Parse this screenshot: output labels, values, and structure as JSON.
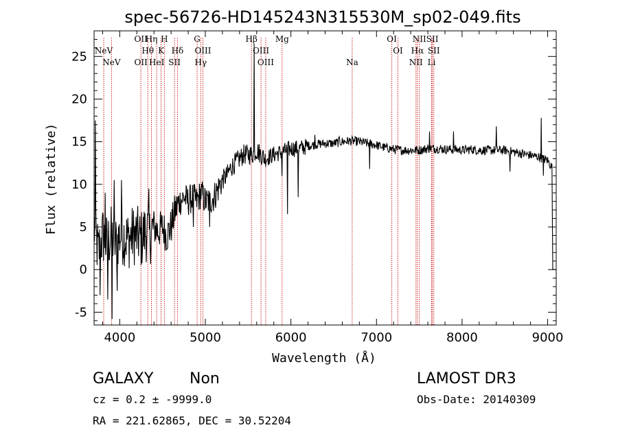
{
  "chart_data": {
    "type": "line",
    "title": "spec-56726-HD145243N315530M_sp02-049.fits",
    "xlabel": "Wavelength (Å)",
    "ylabel": "Flux (relative)",
    "xlim": [
      3700,
      9100
    ],
    "ylim": [
      -6.5,
      28
    ],
    "xticks": [
      4000,
      5000,
      6000,
      7000,
      8000,
      9000
    ],
    "yticks": [
      -5,
      0,
      5,
      10,
      15,
      20,
      25
    ],
    "series": [
      {
        "name": "flux",
        "anchors": [
          [
            3700,
            5
          ],
          [
            3750,
            2
          ],
          [
            3800,
            4
          ],
          [
            3850,
            3
          ],
          [
            3900,
            4
          ],
          [
            3950,
            3
          ],
          [
            4000,
            4
          ],
          [
            4050,
            4
          ],
          [
            4100,
            3.5
          ],
          [
            4150,
            4
          ],
          [
            4200,
            4
          ],
          [
            4250,
            3.5
          ],
          [
            4300,
            4.5
          ],
          [
            4350,
            4
          ],
          [
            4400,
            5
          ],
          [
            4450,
            4.5
          ],
          [
            4500,
            5
          ],
          [
            4550,
            4
          ],
          [
            4600,
            5
          ],
          [
            4650,
            7
          ],
          [
            4700,
            8
          ],
          [
            4750,
            8.5
          ],
          [
            4800,
            8
          ],
          [
            4850,
            8.5
          ],
          [
            4900,
            8
          ],
          [
            4950,
            9
          ],
          [
            5000,
            8
          ],
          [
            5050,
            8
          ],
          [
            5100,
            8.5
          ],
          [
            5150,
            9.5
          ],
          [
            5200,
            10.5
          ],
          [
            5250,
            11
          ],
          [
            5300,
            12
          ],
          [
            5350,
            12.5
          ],
          [
            5400,
            13
          ],
          [
            5450,
            13.5
          ],
          [
            5500,
            13.5
          ],
          [
            5550,
            13.5
          ],
          [
            5600,
            14
          ],
          [
            5700,
            13
          ],
          [
            5800,
            13.5
          ],
          [
            5900,
            13.8
          ],
          [
            6000,
            14.2
          ],
          [
            6100,
            14.2
          ],
          [
            6200,
            14.5
          ],
          [
            6300,
            14.7
          ],
          [
            6400,
            14.8
          ],
          [
            6500,
            14.8
          ],
          [
            6600,
            15
          ],
          [
            6700,
            15.1
          ],
          [
            6800,
            15
          ],
          [
            6900,
            14.8
          ],
          [
            7000,
            14.6
          ],
          [
            7100,
            14.3
          ],
          [
            7200,
            14.1
          ],
          [
            7300,
            14
          ],
          [
            7400,
            14
          ],
          [
            7500,
            14
          ],
          [
            7600,
            14.2
          ],
          [
            7700,
            14.2
          ],
          [
            7800,
            14.1
          ],
          [
            7900,
            14.1
          ],
          [
            8000,
            14
          ],
          [
            8100,
            14.1
          ],
          [
            8200,
            14
          ],
          [
            8300,
            14
          ],
          [
            8400,
            14
          ],
          [
            8500,
            14
          ],
          [
            8600,
            13.8
          ],
          [
            8700,
            13.6
          ],
          [
            8800,
            13.4
          ],
          [
            8900,
            13.2
          ],
          [
            9000,
            12.8
          ],
          [
            9050,
            12
          ]
        ],
        "features": [
          [
            3715,
            17.5
          ],
          [
            3770,
            -3
          ],
          [
            3830,
            9
          ],
          [
            3860,
            -3.5
          ],
          [
            3910,
            -5.8
          ],
          [
            3935,
            10.5
          ],
          [
            3970,
            -2.5
          ],
          [
            4020,
            10.5
          ],
          [
            4340,
            9.5
          ],
          [
            4860,
            5
          ],
          [
            5050,
            5
          ],
          [
            5168,
            10.5
          ],
          [
            5572,
            26.5
          ],
          [
            5895,
            11
          ],
          [
            5960,
            6.5
          ],
          [
            6087,
            8.5
          ],
          [
            6280,
            15.8
          ],
          [
            6563,
            15.6
          ],
          [
            6920,
            11.8
          ],
          [
            7620,
            16.2
          ],
          [
            7900,
            16.2
          ],
          [
            8400,
            16.8
          ],
          [
            8562,
            11.5
          ],
          [
            8925,
            17.8
          ],
          [
            8950,
            11
          ]
        ],
        "tail_value": 0
      }
    ],
    "spectral_lines": [
      {
        "label": "NeV",
        "x": 3426,
        "row": 2
      },
      {
        "label": "NeV",
        "x": 3346,
        "row": 1
      },
      {
        "label": "OII",
        "x": 3727,
        "row": 0
      },
      {
        "label": "OII",
        "x": 3727,
        "row": 2
      },
      {
        "label": "Hη",
        "x": 3835,
        "row": 0
      },
      {
        "label": "Hθ",
        "x": 3798,
        "row": 1
      },
      {
        "label": "HeI",
        "x": 3889,
        "row": 2
      },
      {
        "label": "H",
        "x": 3968,
        "row": 0
      },
      {
        "label": "K",
        "x": 3934,
        "row": 1
      },
      {
        "label": "Hδ",
        "x": 4102,
        "row": 1
      },
      {
        "label": "SII",
        "x": 4072,
        "row": 2
      },
      {
        "label": "G",
        "x": 4304,
        "row": 0
      },
      {
        "label": "OIII",
        "x": 4363,
        "row": 1
      },
      {
        "label": "Hγ",
        "x": 4341,
        "row": 2
      },
      {
        "label": "Hβ",
        "x": 4861,
        "row": 0
      },
      {
        "label": "OIII",
        "x": 4959,
        "row": 1
      },
      {
        "label": "OIII",
        "x": 5007,
        "row": 2
      },
      {
        "label": "Mg",
        "x": 5175,
        "row": 0
      },
      {
        "label": "Na",
        "x": 5894,
        "row": 2
      },
      {
        "label": "OI",
        "x": 6300,
        "row": 0
      },
      {
        "label": "OI",
        "x": 6363,
        "row": 1
      },
      {
        "label": "NII",
        "x": 6548,
        "row": 2
      },
      {
        "label": "NII",
        "x": 6583,
        "row": 0
      },
      {
        "label": "Hα",
        "x": 6563,
        "row": 1
      },
      {
        "label": "SII",
        "x": 6716,
        "row": 0
      },
      {
        "label": "SII",
        "x": 6731,
        "row": 1
      },
      {
        "label": "Li",
        "x": 6708,
        "row": 2
      }
    ],
    "redshift_shift": 1.1395
  },
  "footer": {
    "class": "GALAXY",
    "subclass": "Non",
    "cz": "cz = 0.2 ± -9999.0",
    "radec": "RA = 221.62865, DEC =  30.52204",
    "survey": "LAMOST DR3",
    "obsdate": "Obs-Date: 20140309"
  },
  "colors": {
    "line_marker": "#cc2222",
    "spectrum": "#000000"
  }
}
